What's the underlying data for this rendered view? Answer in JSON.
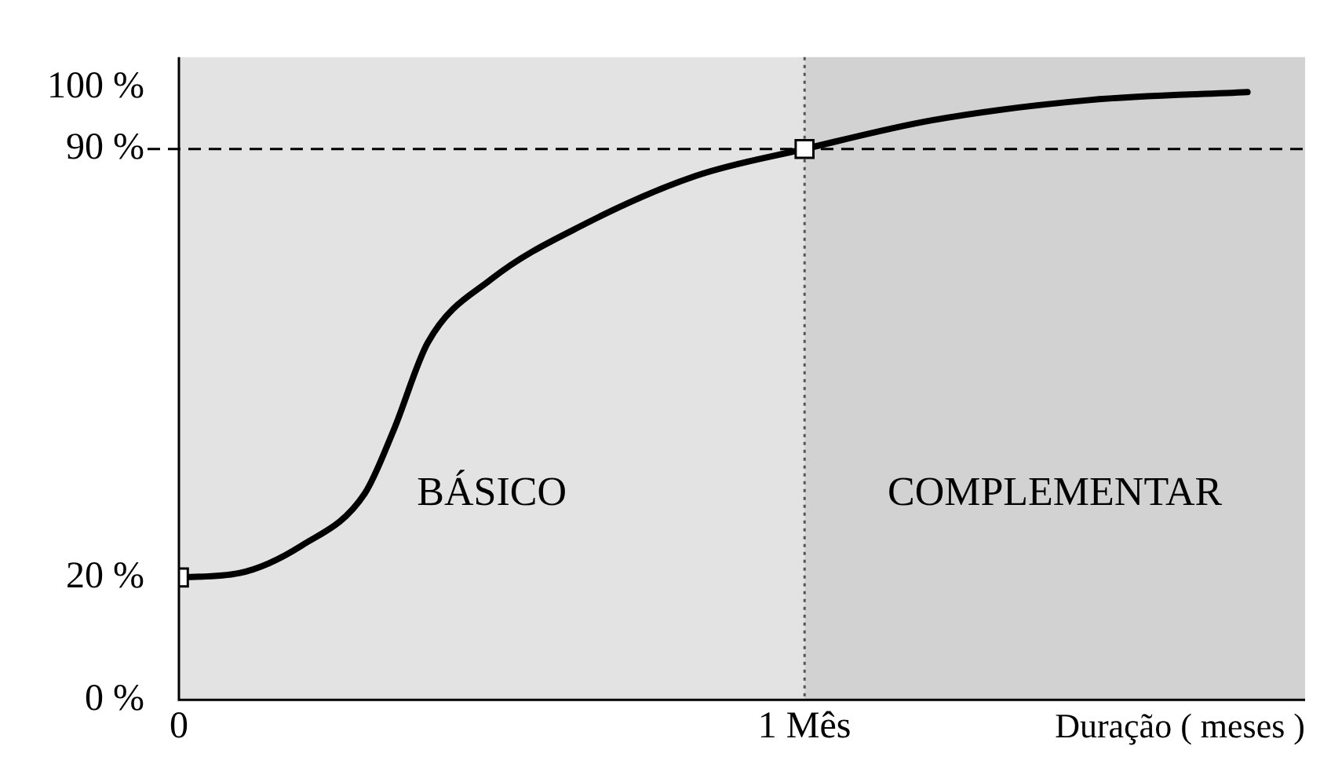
{
  "chart_data": {
    "type": "line",
    "xlabel": "Duração ( meses )",
    "xlim": [
      0,
      1.8
    ],
    "xticks": [
      0,
      {
        "value": 1,
        "label": "1 Mês"
      }
    ],
    "ylim": [
      0,
      105
    ],
    "yticks": [
      {
        "value": 0,
        "label": "0 %"
      },
      {
        "value": 20,
        "label": "20 %"
      },
      {
        "value": 90,
        "label": "90 %"
      },
      {
        "value": 100,
        "label": "100 %"
      }
    ],
    "series": [
      {
        "color": "#000000",
        "marker": "none",
        "x": [
          0,
          0.096,
          0.196,
          0.297,
          0.343,
          0.398,
          0.499,
          0.65,
          0.826,
          1,
          1.204,
          1.456,
          1.708
        ],
        "values": [
          20,
          20.7,
          25.2,
          33.7,
          44,
          58.4,
          68.7,
          77.8,
          85.6,
          90,
          94.7,
          98,
          99.3
        ]
      },
      {
        "type": "scatter",
        "color": "#000000",
        "marker": "square",
        "x": [
          0,
          1
        ],
        "values": [
          20,
          90
        ]
      }
    ],
    "bands": [
      {
        "axis": "x",
        "from": 0,
        "to": 1,
        "label": "BÁSICO",
        "color": "#e3e3e3"
      },
      {
        "axis": "x",
        "from": 1,
        "to": 1.8,
        "label": "COMPLEMENTAR",
        "color": "#d2d2d2"
      }
    ],
    "ref_lines": [
      {
        "axis": "y",
        "value": 90,
        "line_style": "dashed",
        "color": "#000000"
      },
      {
        "axis": "x",
        "value": 1,
        "line_style": "dotted",
        "color": "#555555"
      }
    ],
    "grid": false,
    "legend": false
  }
}
